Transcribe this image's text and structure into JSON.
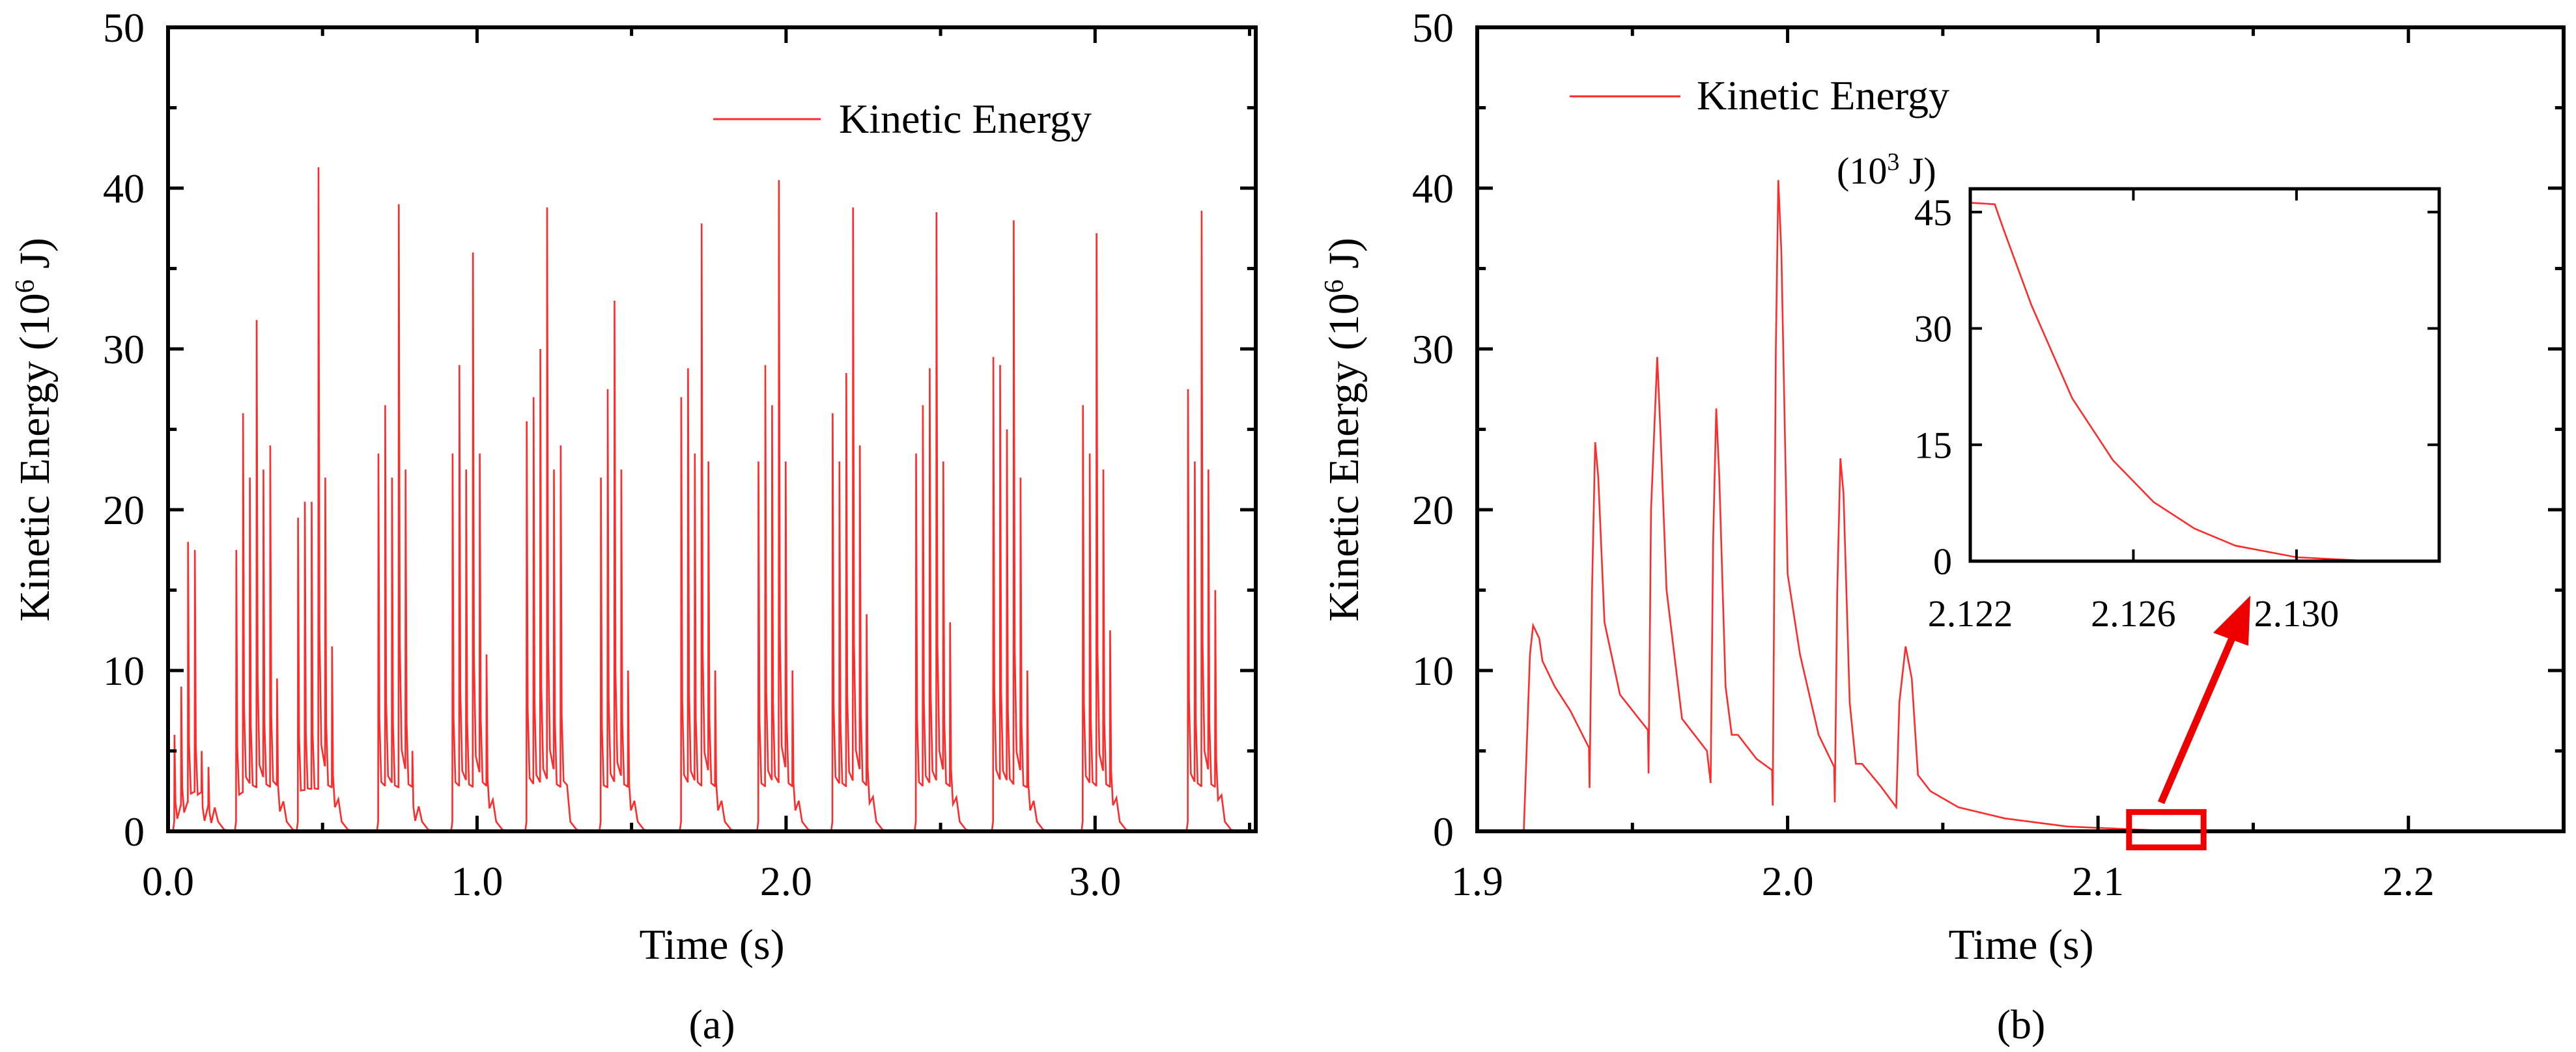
{
  "chart_data": [
    {
      "id": "a",
      "type": "line",
      "caption": "(a)",
      "xlabel": "Time (s)",
      "ylabel_main": "Kinetic Energy (10",
      "ylabel_exp": "6",
      "ylabel_tail": " J)",
      "xlim": [
        0.0,
        3.52
      ],
      "ylim": [
        0,
        50
      ],
      "xticks": [
        0.0,
        1.0,
        2.0,
        3.0
      ],
      "xtick_labels": [
        "0.0",
        "1.0",
        "2.0",
        "3.0"
      ],
      "yticks": [
        0,
        10,
        20,
        30,
        40,
        50
      ],
      "ytick_labels": [
        "0",
        "10",
        "20",
        "30",
        "40",
        "50"
      ],
      "legend": "Kinetic Energy",
      "legend_position": "top-right",
      "series_color": "#ff2a2a",
      "bursts": [
        {
          "start": 0.02,
          "spikes": [
            6.0,
            9.0,
            18.0,
            17.5,
            5.0,
            4.0
          ]
        },
        {
          "start": 0.22,
          "spikes": [
            17.5,
            26.0,
            22.0,
            31.8,
            22.5,
            24.0,
            9.5
          ]
        },
        {
          "start": 0.42,
          "spikes": [
            19.5,
            20.5,
            20.5,
            41.3,
            22.0,
            11.5
          ]
        },
        {
          "start": 0.68,
          "spikes": [
            23.5,
            26.5,
            22.0,
            39.0,
            22.5,
            5.0
          ]
        },
        {
          "start": 0.92,
          "spikes": [
            23.5,
            29.0,
            22.5,
            36.0,
            23.5,
            11.0
          ]
        },
        {
          "start": 1.16,
          "spikes": [
            25.5,
            27.0,
            30.0,
            38.8,
            22.5,
            24.0
          ]
        },
        {
          "start": 1.4,
          "spikes": [
            22.0,
            27.5,
            33.0,
            22.5,
            10.0
          ]
        },
        {
          "start": 1.66,
          "spikes": [
            27.0,
            28.8,
            23.5,
            37.8,
            23.0,
            10.0
          ]
        },
        {
          "start": 1.91,
          "spikes": [
            23.0,
            29.0,
            26.5,
            40.5,
            23.0,
            10.0
          ]
        },
        {
          "start": 2.15,
          "spikes": [
            26.0,
            23.0,
            28.5,
            38.8,
            24.0,
            13.5
          ]
        },
        {
          "start": 2.42,
          "spikes": [
            23.5,
            26.5,
            28.8,
            38.5,
            23.0,
            13.0
          ]
        },
        {
          "start": 2.67,
          "spikes": [
            29.5,
            29.0,
            25.0,
            38.0,
            22.0,
            10.0
          ]
        },
        {
          "start": 2.96,
          "spikes": [
            26.5,
            23.5,
            37.2,
            22.5,
            12.5
          ]
        },
        {
          "start": 3.3,
          "spikes": [
            27.5,
            23.0,
            38.6,
            22.5,
            15.0
          ]
        }
      ]
    },
    {
      "id": "b",
      "type": "line",
      "caption": "(b)",
      "xlabel": "Time (s)",
      "ylabel_main": "Kinetic Energy (10",
      "ylabel_exp": "6",
      "ylabel_tail": " J)",
      "xlim": [
        1.9,
        2.25
      ],
      "ylim": [
        0,
        50
      ],
      "xticks": [
        1.9,
        2.0,
        2.1,
        2.2
      ],
      "xtick_labels": [
        "1.9",
        "2.0",
        "2.1",
        "2.2"
      ],
      "yticks": [
        0,
        10,
        20,
        30,
        40,
        50
      ],
      "ytick_labels": [
        "0",
        "10",
        "20",
        "30",
        "40",
        "50"
      ],
      "legend": "Kinetic Energy",
      "legend_position": "top-left",
      "series_color": "#ff2a2a",
      "highlight_color": "#ee0000",
      "highlight_range": {
        "x": [
          2.11,
          2.134
        ],
        "y": [
          -1.0,
          1.2
        ]
      },
      "series": [
        {
          "t": 1.915,
          "e": 0.0
        },
        {
          "t": 1.917,
          "e": 11.0
        },
        {
          "t": 1.918,
          "e": 12.8
        },
        {
          "t": 1.92,
          "e": 12.0
        },
        {
          "t": 1.921,
          "e": 10.6
        },
        {
          "t": 1.925,
          "e": 9.0
        },
        {
          "t": 1.93,
          "e": 7.5
        },
        {
          "t": 1.936,
          "e": 5.2
        },
        {
          "t": 1.9362,
          "e": 2.7
        },
        {
          "t": 1.937,
          "e": 15.0
        },
        {
          "t": 1.938,
          "e": 24.2
        },
        {
          "t": 1.939,
          "e": 22.0
        },
        {
          "t": 1.941,
          "e": 13.0
        },
        {
          "t": 1.946,
          "e": 8.5
        },
        {
          "t": 1.955,
          "e": 6.3
        },
        {
          "t": 1.9552,
          "e": 3.6
        },
        {
          "t": 1.956,
          "e": 20.0
        },
        {
          "t": 1.958,
          "e": 29.5
        },
        {
          "t": 1.959,
          "e": 25.0
        },
        {
          "t": 1.961,
          "e": 15.0
        },
        {
          "t": 1.966,
          "e": 7.0
        },
        {
          "t": 1.974,
          "e": 5.0
        },
        {
          "t": 1.9752,
          "e": 3.0
        },
        {
          "t": 1.976,
          "e": 18.0
        },
        {
          "t": 1.977,
          "e": 26.3
        },
        {
          "t": 1.978,
          "e": 22.0
        },
        {
          "t": 1.98,
          "e": 9.0
        },
        {
          "t": 1.982,
          "e": 6.0
        },
        {
          "t": 1.984,
          "e": 6.0
        },
        {
          "t": 1.99,
          "e": 4.5
        },
        {
          "t": 1.995,
          "e": 3.8
        },
        {
          "t": 1.9952,
          "e": 1.6
        },
        {
          "t": 1.9962,
          "e": 30.0
        },
        {
          "t": 1.997,
          "e": 40.5
        },
        {
          "t": 1.998,
          "e": 36.0
        },
        {
          "t": 2.0,
          "e": 16.0
        },
        {
          "t": 2.004,
          "e": 11.0
        },
        {
          "t": 2.01,
          "e": 6.0
        },
        {
          "t": 2.015,
          "e": 4.0
        },
        {
          "t": 2.0152,
          "e": 1.8
        },
        {
          "t": 2.016,
          "e": 15.0
        },
        {
          "t": 2.017,
          "e": 23.2
        },
        {
          "t": 2.018,
          "e": 21.0
        },
        {
          "t": 2.02,
          "e": 8.0
        },
        {
          "t": 2.022,
          "e": 4.2
        },
        {
          "t": 2.024,
          "e": 4.2
        },
        {
          "t": 2.03,
          "e": 2.8
        },
        {
          "t": 2.035,
          "e": 1.5
        },
        {
          "t": 2.036,
          "e": 8.0
        },
        {
          "t": 2.038,
          "e": 11.5
        },
        {
          "t": 2.04,
          "e": 9.5
        },
        {
          "t": 2.042,
          "e": 3.5
        },
        {
          "t": 2.046,
          "e": 2.5
        },
        {
          "t": 2.055,
          "e": 1.5
        },
        {
          "t": 2.07,
          "e": 0.8
        },
        {
          "t": 2.09,
          "e": 0.3
        },
        {
          "t": 2.12,
          "e": 0.05
        },
        {
          "t": 2.25,
          "e": 0.0
        }
      ],
      "inset": {
        "unit_label": "(10",
        "unit_exp": "3",
        "unit_tail": " J)",
        "xlim": [
          2.122,
          2.1335
        ],
        "ylim": [
          0,
          48
        ],
        "xticks": [
          2.122,
          2.126,
          2.13
        ],
        "xtick_labels": [
          "2.122",
          "2.126",
          "2.130"
        ],
        "yticks": [
          0,
          15,
          30,
          45
        ],
        "ytick_labels": [
          "0",
          "15",
          "30",
          "45"
        ],
        "series": [
          {
            "t": 2.122,
            "e": 46.2
          },
          {
            "t": 2.1226,
            "e": 46.0
          },
          {
            "t": 2.1228,
            "e": 43.0
          },
          {
            "t": 2.1235,
            "e": 33.0
          },
          {
            "t": 2.1245,
            "e": 21.0
          },
          {
            "t": 2.1255,
            "e": 13.0
          },
          {
            "t": 2.1265,
            "e": 7.6
          },
          {
            "t": 2.1275,
            "e": 4.2
          },
          {
            "t": 2.1285,
            "e": 2.0
          },
          {
            "t": 2.13,
            "e": 0.5
          },
          {
            "t": 2.1315,
            "e": 0.1
          },
          {
            "t": 2.1335,
            "e": 0.0
          }
        ]
      }
    }
  ]
}
